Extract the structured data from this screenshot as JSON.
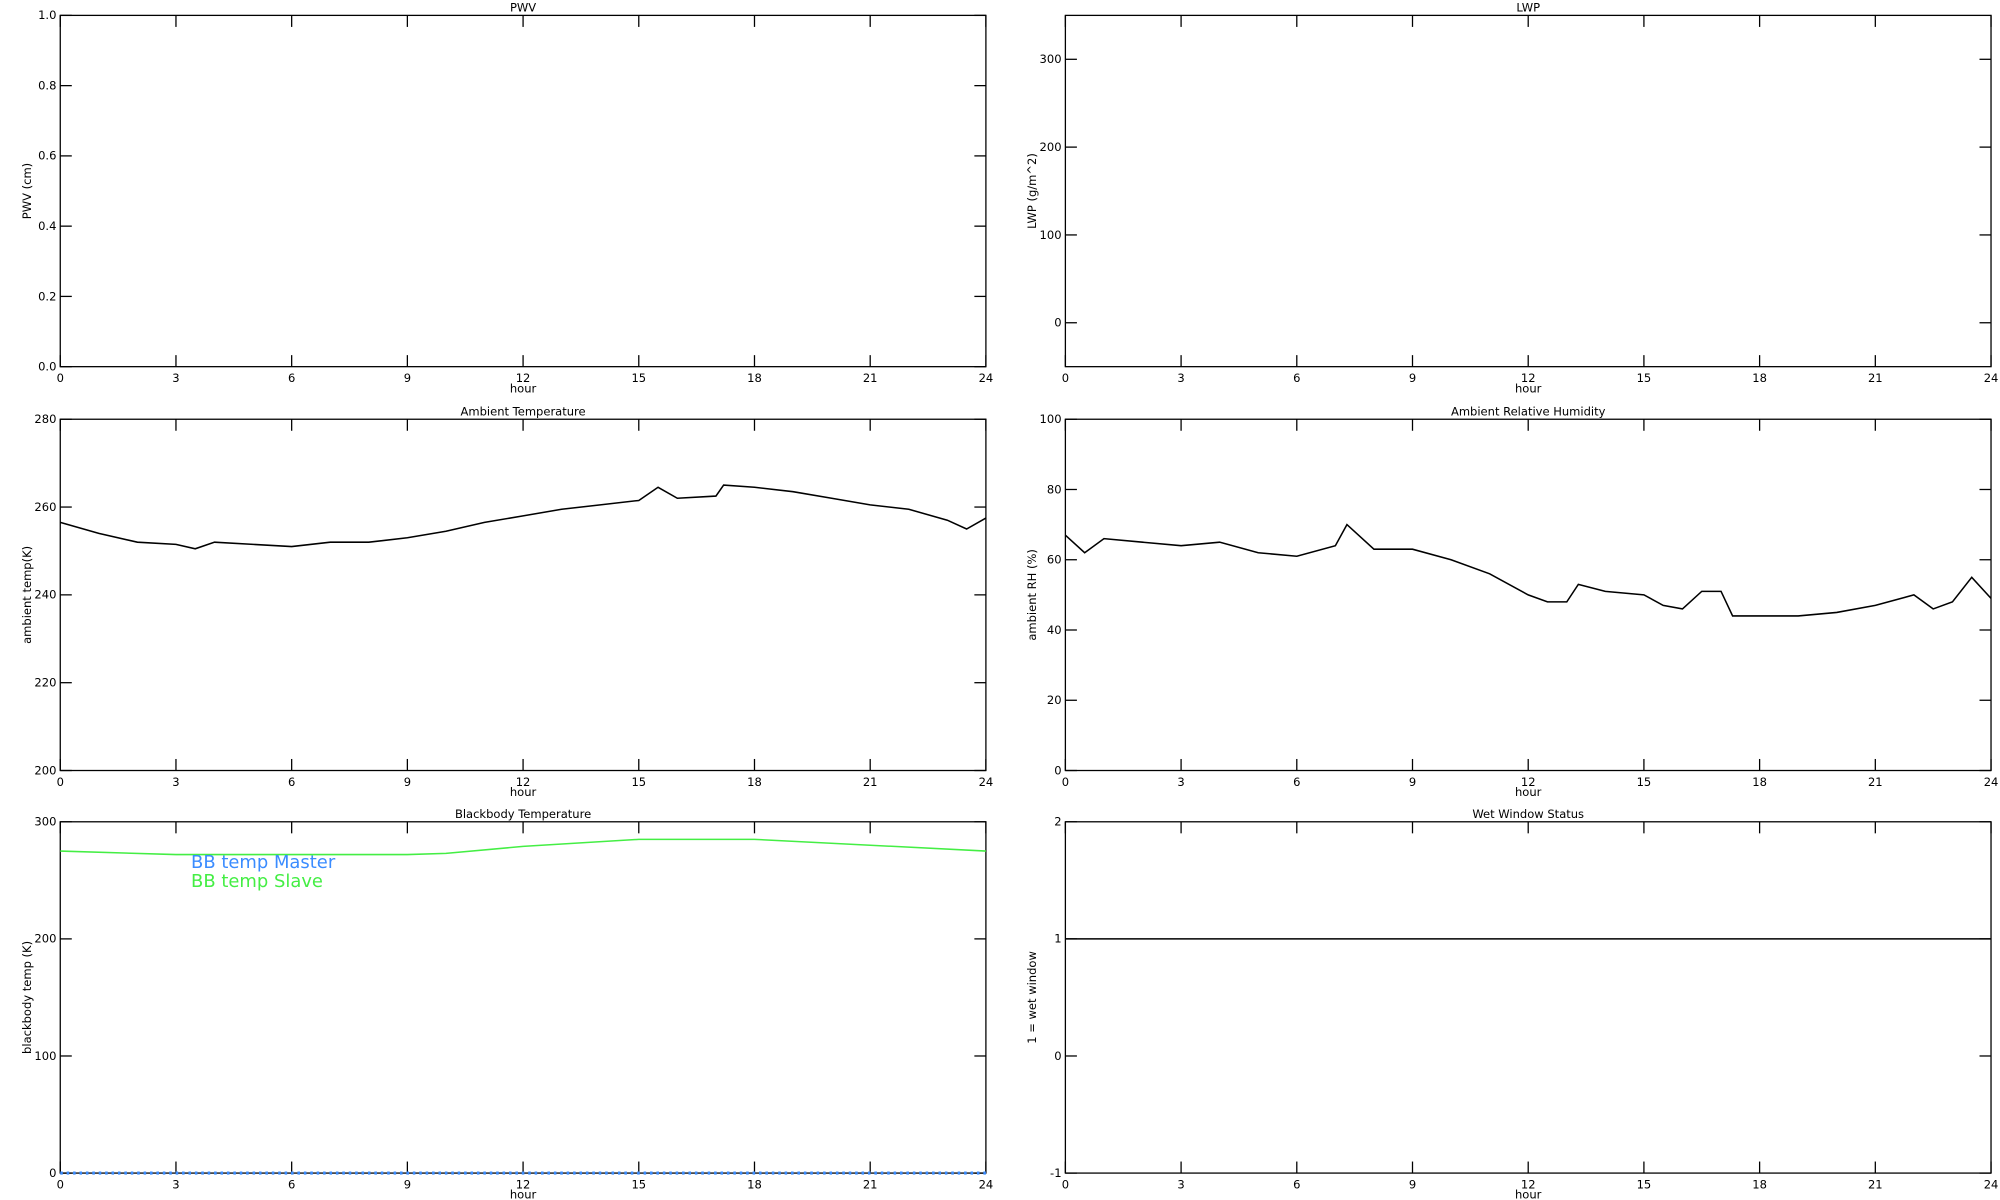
{
  "chart_data": [
    {
      "type": "line",
      "title": "PWV",
      "x_label": "hour",
      "y_label": "PWV (cm)",
      "xlim": [
        0,
        24
      ],
      "xticks": [
        0,
        3,
        6,
        9,
        12,
        15,
        18,
        21,
        24
      ],
      "ylim": [
        0,
        1
      ],
      "yticks": [
        {
          "value": 0,
          "label": "0.0"
        },
        0.2,
        0.4,
        0.6,
        0.8,
        {
          "value": 1,
          "label": "1.0"
        }
      ],
      "x": [],
      "series": []
    },
    {
      "type": "line",
      "title": "LWP",
      "x_label": "hour",
      "y_label": "LWP (g/m^2)",
      "xlim": [
        0,
        24
      ],
      "xticks": [
        0,
        3,
        6,
        9,
        12,
        15,
        18,
        21,
        24
      ],
      "ylim": [
        -50,
        350
      ],
      "yticks": [
        0,
        100,
        200,
        300
      ],
      "x": [],
      "series": []
    },
    {
      "type": "line",
      "title": "Ambient Temperature",
      "x_label": "hour",
      "y_label": "ambient temp(K)",
      "xlim": [
        0,
        24
      ],
      "xticks": [
        0,
        3,
        6,
        9,
        12,
        15,
        18,
        21,
        24
      ],
      "ylim": [
        200,
        280
      ],
      "yticks": [
        200,
        220,
        240,
        260,
        280
      ],
      "x": [
        0,
        1,
        2,
        3,
        3.5,
        4,
        5,
        6,
        7,
        8,
        9,
        10,
        11,
        12,
        13,
        14,
        15,
        15.5,
        16,
        17,
        17.2,
        18,
        19,
        20,
        21,
        22,
        23,
        23.5,
        24
      ],
      "series": [
        {
          "color": "#000000",
          "values": [
            256.5,
            254,
            252,
            251.5,
            250.5,
            252,
            251.5,
            251,
            252,
            252,
            253,
            254.5,
            256.5,
            258,
            259.5,
            260.5,
            261.5,
            264.5,
            262,
            262.5,
            265,
            264.5,
            263.5,
            262,
            260.5,
            259.5,
            257,
            255,
            257.5
          ]
        }
      ]
    },
    {
      "type": "line",
      "title": "Ambient Relative Humidity",
      "x_label": "hour",
      "y_label": "ambient RH (%)",
      "xlim": [
        0,
        24
      ],
      "xticks": [
        0,
        3,
        6,
        9,
        12,
        15,
        18,
        21,
        24
      ],
      "ylim": [
        0,
        100
      ],
      "yticks": [
        0,
        20,
        40,
        60,
        80,
        100
      ],
      "x": [
        0,
        0.5,
        1,
        2,
        3,
        4,
        5,
        6,
        7,
        7.3,
        8,
        9,
        10,
        11,
        12,
        12.5,
        13,
        13.3,
        14,
        15,
        15.5,
        16,
        16.5,
        17,
        17.3,
        18,
        19,
        20,
        21,
        22,
        22.5,
        23,
        23.5,
        24
      ],
      "series": [
        {
          "color": "#000000",
          "values": [
            67,
            62,
            66,
            65,
            64,
            65,
            62,
            61,
            64,
            70,
            63,
            63,
            60,
            56,
            50,
            48,
            48,
            53,
            51,
            50,
            47,
            46,
            51,
            51,
            44,
            44,
            44,
            45,
            47,
            50,
            46,
            48,
            55,
            49
          ]
        }
      ]
    },
    {
      "type": "line",
      "title": "Blackbody Temperature",
      "x_label": "hour",
      "y_label": "blackbody temp (K)",
      "xlim": [
        0,
        24
      ],
      "xticks": [
        0,
        3,
        6,
        9,
        12,
        15,
        18,
        21,
        24
      ],
      "ylim": [
        0,
        300
      ],
      "yticks": [
        0,
        100,
        200,
        300
      ],
      "legend": "upper left",
      "x": [
        0,
        3,
        6,
        9,
        10,
        12,
        15,
        18,
        21,
        24
      ],
      "series": [
        {
          "name": "BB temp Master",
          "color": "#3a8cff",
          "values": [
            0,
            0,
            0,
            0,
            0,
            0,
            0,
            0,
            0,
            0
          ]
        },
        {
          "name": "BB temp Slave",
          "color": "#44ee44",
          "values": [
            275,
            272,
            272,
            272,
            273,
            279,
            285,
            285,
            280,
            275
          ]
        }
      ]
    },
    {
      "type": "line",
      "title": "Wet Window Status",
      "x_label": "hour",
      "y_label": "1 = wet window",
      "xlim": [
        0,
        24
      ],
      "xticks": [
        0,
        3,
        6,
        9,
        12,
        15,
        18,
        21,
        24
      ],
      "ylim": [
        -1,
        2
      ],
      "yticks": [
        -1,
        0,
        1,
        2
      ],
      "x": [
        0,
        24
      ],
      "series": [
        {
          "color": "#000000",
          "values": [
            1,
            1
          ]
        }
      ]
    }
  ]
}
